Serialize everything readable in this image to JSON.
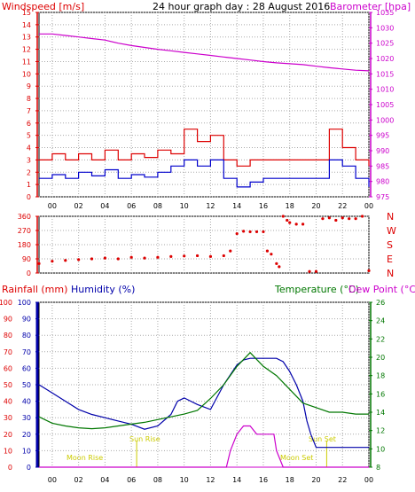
{
  "colors": {
    "wind": "#dd0000",
    "gust": "#dd0000",
    "windavg": "#0000cc",
    "barometer": "#cc00cc",
    "direction": "#dd0000",
    "rain": "#cc00cc",
    "rain_label": "#dd0000",
    "humidity": "#0000aa",
    "temperature": "#007700",
    "dewpoint": "#cc00cc",
    "text": "#000000",
    "event": "#cccc00",
    "grid": "#999999"
  },
  "chart_data": [
    {
      "type": "line",
      "title": "24 hour graph day : 28 August 2016",
      "ylabel": "Windspeed [m/s]",
      "y2label": "Barometer [hpa]",
      "ylim": [
        0,
        15
      ],
      "y2lim": [
        975,
        1035
      ],
      "yticks": [
        "0",
        "1",
        "2",
        "3",
        "4",
        "5",
        "6",
        "7",
        "8",
        "9",
        "10",
        "11",
        "12",
        "13",
        "14",
        "15"
      ],
      "y2ticks": [
        "975",
        "980",
        "985",
        "990",
        "995",
        "1000",
        "1005",
        "1010",
        "1015",
        "1020",
        "1025",
        "1030",
        "1035"
      ],
      "xlim": [
        -1,
        24
      ],
      "xticks": [
        "00",
        "02",
        "04",
        "06",
        "08",
        "10",
        "12",
        "14",
        "16",
        "18",
        "20",
        "22",
        "00"
      ],
      "grid": true,
      "series": [
        {
          "name": "Barometer [hpa]",
          "axis": "right",
          "x": [
            -1,
            0,
            1,
            2,
            3,
            4,
            5,
            6,
            7,
            8,
            9,
            10,
            11,
            12,
            13,
            14,
            15,
            16,
            17,
            18,
            19,
            20,
            21,
            22,
            23,
            24
          ],
          "values": [
            1028,
            1028,
            1027.5,
            1027,
            1026.5,
            1026,
            1025,
            1024.2,
            1023.6,
            1023,
            1022.5,
            1022,
            1021.5,
            1021,
            1020.5,
            1020,
            1019.5,
            1019,
            1018.6,
            1018.3,
            1018,
            1017.5,
            1017,
            1016.6,
            1016.2,
            1016
          ]
        },
        {
          "x": [
            -1,
            0,
            1,
            2,
            3,
            4,
            5,
            6,
            7,
            8,
            9,
            10,
            11,
            12,
            13,
            14,
            15,
            16,
            17,
            18,
            19,
            20,
            21,
            22,
            23,
            24
          ],
          "values": [
            3,
            3.5,
            3,
            3.5,
            3,
            3.8,
            3,
            3.5,
            3.2,
            3.8,
            3.5,
            5.5,
            4.5,
            5,
            3,
            2.5,
            3,
            3,
            3,
            3,
            3,
            3,
            5.5,
            4,
            3,
            2.5
          ]
        },
        {
          "x": [
            -1,
            0,
            1,
            2,
            3,
            4,
            5,
            6,
            7,
            8,
            9,
            10,
            11,
            12,
            13,
            14,
            15,
            16,
            17,
            18,
            19,
            20,
            21,
            22,
            23,
            24
          ],
          "values": [
            1.5,
            1.8,
            1.5,
            2,
            1.7,
            2.2,
            1.5,
            1.8,
            1.6,
            2,
            2.5,
            3,
            2.5,
            3,
            1.5,
            0.8,
            1.2,
            1.5,
            1.5,
            1.5,
            1.5,
            1.5,
            3,
            2.5,
            1.5,
            0.8
          ]
        }
      ]
    },
    {
      "type": "scatter",
      "ylabel": "",
      "ylim": [
        0,
        360
      ],
      "yticks": [
        "0",
        "90",
        "180",
        "270",
        "360"
      ],
      "y2ticks": [
        "N",
        "W",
        "S",
        "E",
        "N"
      ],
      "xlim": [
        -1,
        24
      ],
      "series": [
        {
          "x": [
            -1,
            0,
            1,
            2,
            3,
            4,
            5,
            6,
            7,
            8,
            9,
            10,
            11,
            12,
            13,
            13.5,
            14,
            14.5,
            15,
            15.5,
            16,
            16.3,
            16.6,
            17,
            17.2,
            17.5,
            17.8,
            18,
            18.5,
            19,
            19.5,
            20,
            20.5,
            21,
            21.5,
            22,
            22.5,
            23,
            23.5,
            24
          ],
          "values": [
            60,
            75,
            80,
            85,
            90,
            95,
            90,
            100,
            95,
            100,
            105,
            108,
            110,
            105,
            110,
            140,
            250,
            265,
            262,
            262,
            262,
            140,
            120,
            60,
            40,
            360,
            335,
            320,
            310,
            310,
            10,
            10,
            345,
            350,
            335,
            350,
            345,
            345,
            360,
            15
          ]
        }
      ]
    },
    {
      "type": "line",
      "ylabel": "Rainfall (mm) Humidity (%)",
      "y2label": "Temperature (°C) Dew Point (°C)",
      "ylim": [
        0,
        100
      ],
      "y2lim": [
        8,
        26
      ],
      "yticks": [
        "0",
        "10",
        "20",
        "30",
        "40",
        "50",
        "60",
        "70",
        "80",
        "90",
        "100"
      ],
      "y2ticks": [
        "8",
        "10",
        "12",
        "14",
        "16",
        "18",
        "20",
        "22",
        "24",
        "26"
      ],
      "xlim": [
        -1,
        24
      ],
      "xticks": [
        "00",
        "02",
        "04",
        "06",
        "08",
        "10",
        "12",
        "14",
        "16",
        "18",
        "20",
        "22",
        "00"
      ],
      "annotations": [
        "Moon Rise",
        "Sun Rise",
        "Moon Set",
        "Sun Set"
      ],
      "series": [
        {
          "name": "Humidity (%)",
          "x": [
            -1,
            0,
            1,
            2,
            3,
            4,
            5,
            6,
            7,
            8,
            9,
            9.5,
            10,
            11,
            12,
            13,
            14,
            14.5,
            15,
            16,
            17,
            17.5,
            18,
            18.5,
            19,
            19.3,
            19.6,
            20,
            21,
            22,
            23,
            24
          ],
          "values": [
            50,
            45,
            40,
            35,
            32,
            30,
            28,
            26,
            23,
            25,
            32,
            40,
            42,
            38,
            35,
            50,
            62,
            65,
            66,
            66,
            66,
            64,
            58,
            50,
            40,
            28,
            20,
            12,
            12,
            12,
            12,
            12
          ]
        },
        {
          "name": "Temperature (°C)",
          "x": [
            -1,
            0,
            1,
            2,
            3,
            4,
            5,
            6,
            7,
            8,
            9,
            10,
            11,
            12,
            13,
            14,
            15,
            16,
            17,
            18,
            19,
            20,
            21,
            22,
            23,
            24
          ],
          "values": [
            13.5,
            12.8,
            12.5,
            12.3,
            12.2,
            12.3,
            12.5,
            12.7,
            12.9,
            13.2,
            13.5,
            13.8,
            14.2,
            15.5,
            17,
            19,
            20.5,
            19,
            18,
            16.5,
            15,
            14.5,
            14,
            14,
            13.8,
            13.8
          ]
        },
        {
          "name": "Rainfall (mm)",
          "x": [
            -1,
            13.2,
            13.5,
            14,
            14.5,
            15,
            15.5,
            16,
            16.8,
            17,
            17.5,
            18,
            24
          ],
          "values": [
            0,
            0,
            10,
            20,
            25,
            25,
            20,
            20,
            20,
            10,
            0,
            0,
            0
          ]
        },
        {
          "name": "Dew Point (°C)",
          "x": [
            -1,
            24
          ],
          "values": [
            8,
            8
          ]
        }
      ]
    }
  ],
  "labels": {
    "windspeed": "Windspeed [m/s]",
    "title": "24 hour graph day : 28 August 2016",
    "barometer": "Barometer [hpa]",
    "rainfall": "Rainfall (mm)",
    "humidity": "Humidity (%)",
    "temperature": "Temperature (°C)",
    "dewpoint": "Dew Point (°C)",
    "moonrise": "Moon Rise",
    "sunrise": "Sun Rise",
    "moonset": "Moon Set",
    "sunset": "Sun Set"
  }
}
